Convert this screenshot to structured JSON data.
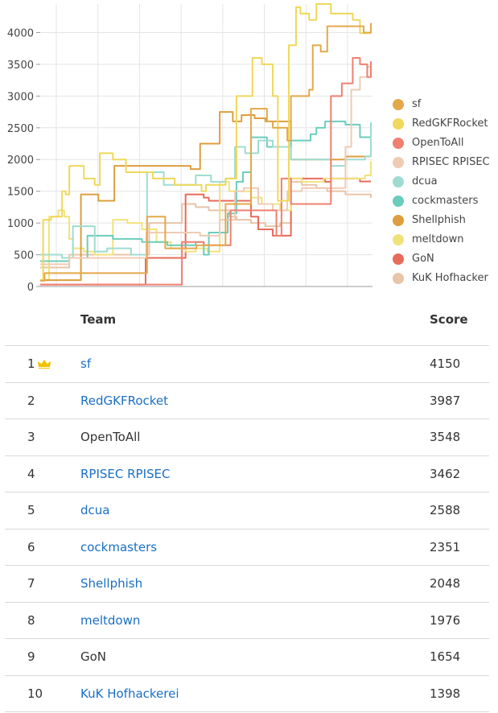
{
  "chart_data": {
    "type": "line",
    "xlabel": "",
    "ylabel": "",
    "ylim": [
      0,
      4450
    ],
    "yticks": [
      0,
      500,
      1000,
      1500,
      2000,
      2500,
      3000,
      3500,
      4000
    ],
    "x_tick_count": 8,
    "grid": true,
    "legend_position": "right",
    "series": [
      {
        "name": "sf",
        "color": "#e4a84a",
        "values": [
          [
            0,
            90
          ],
          [
            3,
            90
          ],
          [
            6,
            210
          ],
          [
            40,
            210
          ],
          [
            80,
            210
          ],
          [
            120,
            210
          ],
          [
            147,
            1100
          ],
          [
            158,
            1100
          ],
          [
            172,
            600
          ],
          [
            200,
            600
          ],
          [
            215,
            650
          ],
          [
            247,
            650
          ],
          [
            255,
            1300
          ],
          [
            280,
            1300
          ],
          [
            290,
            2800
          ],
          [
            312,
            2600
          ],
          [
            320,
            2500
          ],
          [
            340,
            2300
          ],
          [
            345,
            3000
          ],
          [
            370,
            3100
          ],
          [
            375,
            3800
          ],
          [
            386,
            3700
          ],
          [
            395,
            4100
          ],
          [
            430,
            4100
          ],
          [
            445,
            4000
          ],
          [
            455,
            4150
          ]
        ]
      },
      {
        "name": "RedGKFRocket",
        "color": "#efd85a",
        "values": [
          [
            0,
            100
          ],
          [
            4,
            1050
          ],
          [
            15,
            1100
          ],
          [
            30,
            1500
          ],
          [
            35,
            1450
          ],
          [
            40,
            1900
          ],
          [
            60,
            1700
          ],
          [
            75,
            1600
          ],
          [
            82,
            2100
          ],
          [
            100,
            2000
          ],
          [
            118,
            1800
          ],
          [
            130,
            1800
          ],
          [
            155,
            1700
          ],
          [
            185,
            1600
          ],
          [
            214,
            1600
          ],
          [
            222,
            1500
          ],
          [
            228,
            1600
          ],
          [
            255,
            1700
          ],
          [
            270,
            3000
          ],
          [
            292,
            3600
          ],
          [
            305,
            3500
          ],
          [
            320,
            3000
          ],
          [
            327,
            1350
          ],
          [
            335,
            1350
          ],
          [
            342,
            3800
          ],
          [
            352,
            4400
          ],
          [
            358,
            4300
          ],
          [
            370,
            4200
          ],
          [
            380,
            4450
          ],
          [
            400,
            4300
          ],
          [
            430,
            4200
          ],
          [
            440,
            3990
          ],
          [
            455,
            3990
          ]
        ]
      },
      {
        "name": "OpenToAll",
        "color": "#ef8070",
        "values": [
          [
            0,
            30
          ],
          [
            8,
            30
          ],
          [
            30,
            30
          ],
          [
            50,
            30
          ],
          [
            100,
            30
          ],
          [
            140,
            30
          ],
          [
            185,
            30
          ],
          [
            195,
            700
          ],
          [
            210,
            700
          ],
          [
            225,
            650
          ],
          [
            262,
            1200
          ],
          [
            290,
            1200
          ],
          [
            318,
            1200
          ],
          [
            325,
            800
          ],
          [
            332,
            1700
          ],
          [
            345,
            1300
          ],
          [
            360,
            1300
          ],
          [
            392,
            1300
          ],
          [
            400,
            3000
          ],
          [
            415,
            3200
          ],
          [
            430,
            3600
          ],
          [
            440,
            3500
          ],
          [
            450,
            3300
          ],
          [
            455,
            3548
          ]
        ]
      },
      {
        "name": "RPISEC RPISEC",
        "color": "#efcbb4",
        "values": [
          [
            0,
            350
          ],
          [
            8,
            350
          ],
          [
            20,
            350
          ],
          [
            40,
            450
          ],
          [
            70,
            450
          ],
          [
            100,
            450
          ],
          [
            130,
            450
          ],
          [
            146,
            850
          ],
          [
            185,
            850
          ],
          [
            220,
            800
          ],
          [
            247,
            1050
          ],
          [
            268,
            1500
          ],
          [
            280,
            1550
          ],
          [
            300,
            1300
          ],
          [
            320,
            1200
          ],
          [
            333,
            1200
          ],
          [
            340,
            1500
          ],
          [
            360,
            1550
          ],
          [
            400,
            1550
          ],
          [
            420,
            2200
          ],
          [
            428,
            3100
          ],
          [
            440,
            3300
          ],
          [
            450,
            3462
          ]
        ]
      },
      {
        "name": "dcua",
        "color": "#9edcd2",
        "values": [
          [
            0,
            500
          ],
          [
            5,
            500
          ],
          [
            15,
            500
          ],
          [
            30,
            450
          ],
          [
            45,
            950
          ],
          [
            65,
            950
          ],
          [
            75,
            550
          ],
          [
            92,
            600
          ],
          [
            113,
            600
          ],
          [
            125,
            500
          ],
          [
            147,
            1800
          ],
          [
            170,
            1600
          ],
          [
            200,
            1600
          ],
          [
            214,
            1750
          ],
          [
            235,
            1650
          ],
          [
            255,
            1700
          ],
          [
            268,
            2200
          ],
          [
            282,
            2100
          ],
          [
            300,
            2300
          ],
          [
            320,
            2200
          ],
          [
            345,
            2000
          ],
          [
            370,
            2000
          ],
          [
            400,
            1900
          ],
          [
            420,
            2000
          ],
          [
            447,
            2050
          ],
          [
            455,
            2588
          ]
        ]
      },
      {
        "name": "cockmasters",
        "color": "#6bcdbb",
        "values": [
          [
            0,
            400
          ],
          [
            10,
            400
          ],
          [
            25,
            400
          ],
          [
            40,
            450
          ],
          [
            65,
            800
          ],
          [
            100,
            750
          ],
          [
            140,
            700
          ],
          [
            175,
            650
          ],
          [
            214,
            700
          ],
          [
            225,
            500
          ],
          [
            232,
            850
          ],
          [
            250,
            850
          ],
          [
            258,
            1150
          ],
          [
            270,
            1650
          ],
          [
            279,
            1800
          ],
          [
            290,
            2350
          ],
          [
            312,
            2200
          ],
          [
            330,
            2200
          ],
          [
            345,
            2300
          ],
          [
            360,
            2300
          ],
          [
            372,
            2400
          ],
          [
            380,
            2500
          ],
          [
            392,
            2600
          ],
          [
            420,
            2550
          ],
          [
            440,
            2351
          ],
          [
            455,
            2351
          ]
        ]
      },
      {
        "name": "Shellphish",
        "color": "#dd9e3e",
        "values": [
          [
            0,
            100
          ],
          [
            15,
            100
          ],
          [
            30,
            100
          ],
          [
            50,
            100
          ],
          [
            56,
            1450
          ],
          [
            65,
            1450
          ],
          [
            80,
            1350
          ],
          [
            102,
            1900
          ],
          [
            120,
            1900
          ],
          [
            155,
            1900
          ],
          [
            189,
            1900
          ],
          [
            207,
            1850
          ],
          [
            220,
            2250
          ],
          [
            237,
            2250
          ],
          [
            247,
            2750
          ],
          [
            265,
            2600
          ],
          [
            277,
            2700
          ],
          [
            295,
            2650
          ],
          [
            310,
            2600
          ],
          [
            325,
            2600
          ],
          [
            345,
            2000
          ],
          [
            370,
            2000
          ],
          [
            395,
            2000
          ],
          [
            420,
            2048
          ],
          [
            455,
            2048
          ]
        ]
      },
      {
        "name": "meltdown",
        "color": "#f0e27a",
        "values": [
          [
            0,
            100
          ],
          [
            8,
            100
          ],
          [
            12,
            1100
          ],
          [
            25,
            1200
          ],
          [
            33,
            1100
          ],
          [
            40,
            750
          ],
          [
            45,
            600
          ],
          [
            60,
            550
          ],
          [
            75,
            500
          ],
          [
            90,
            500
          ],
          [
            100,
            1050
          ],
          [
            120,
            1000
          ],
          [
            140,
            900
          ],
          [
            160,
            700
          ],
          [
            180,
            600
          ],
          [
            200,
            550
          ],
          [
            214,
            600
          ],
          [
            230,
            550
          ],
          [
            247,
            1650
          ],
          [
            260,
            1500
          ],
          [
            277,
            1500
          ],
          [
            290,
            1400
          ],
          [
            305,
            1300
          ],
          [
            330,
            1200
          ],
          [
            345,
            1700
          ],
          [
            360,
            1650
          ],
          [
            390,
            1700
          ],
          [
            420,
            1700
          ],
          [
            447,
            1750
          ],
          [
            455,
            1976
          ]
        ]
      },
      {
        "name": "GoN",
        "color": "#e86a5a",
        "values": [
          [
            0,
            30
          ],
          [
            10,
            30
          ],
          [
            20,
            30
          ],
          [
            60,
            30
          ],
          [
            100,
            30
          ],
          [
            135,
            30
          ],
          [
            145,
            450
          ],
          [
            160,
            450
          ],
          [
            189,
            450
          ],
          [
            200,
            1450
          ],
          [
            225,
            1400
          ],
          [
            232,
            1350
          ],
          [
            260,
            1350
          ],
          [
            290,
            1100
          ],
          [
            300,
            900
          ],
          [
            320,
            800
          ],
          [
            335,
            800
          ],
          [
            345,
            1700
          ],
          [
            380,
            1700
          ],
          [
            392,
            1650
          ],
          [
            400,
            1700
          ],
          [
            430,
            1700
          ],
          [
            440,
            1654
          ],
          [
            455,
            1654
          ]
        ]
      },
      {
        "name": "KuK Hofhacker",
        "color": "#e8c4a8",
        "values": [
          [
            0,
            300
          ],
          [
            5,
            300
          ],
          [
            15,
            300
          ],
          [
            40,
            500
          ],
          [
            60,
            500
          ],
          [
            100,
            500
          ],
          [
            140,
            500
          ],
          [
            150,
            1000
          ],
          [
            170,
            1000
          ],
          [
            195,
            1300
          ],
          [
            214,
            1250
          ],
          [
            232,
            1200
          ],
          [
            260,
            1100
          ],
          [
            270,
            1050
          ],
          [
            277,
            1050
          ],
          [
            290,
            1000
          ],
          [
            310,
            950
          ],
          [
            330,
            1000
          ],
          [
            345,
            1650
          ],
          [
            360,
            1600
          ],
          [
            380,
            1550
          ],
          [
            395,
            1500
          ],
          [
            420,
            1450
          ],
          [
            440,
            1450
          ],
          [
            455,
            1398
          ]
        ]
      }
    ]
  },
  "scoreboard": {
    "headers": {
      "rank": "",
      "team": "Team",
      "score": "Score"
    },
    "rows": [
      {
        "rank": "1",
        "team": "sf",
        "score": "4150",
        "link": true,
        "crown": true
      },
      {
        "rank": "2",
        "team": "RedGKFRocket",
        "score": "3987",
        "link": true
      },
      {
        "rank": "3",
        "team": "OpenToAll",
        "score": "3548",
        "link": false
      },
      {
        "rank": "4",
        "team": "RPISEC RPISEC",
        "score": "3462",
        "link": true
      },
      {
        "rank": "5",
        "team": "dcua",
        "score": "2588",
        "link": true
      },
      {
        "rank": "6",
        "team": "cockmasters",
        "score": "2351",
        "link": true
      },
      {
        "rank": "7",
        "team": "Shellphish",
        "score": "2048",
        "link": true
      },
      {
        "rank": "8",
        "team": "meltdown",
        "score": "1976",
        "link": true
      },
      {
        "rank": "9",
        "team": "GoN",
        "score": "1654",
        "link": false
      },
      {
        "rank": "10",
        "team": "KuK Hofhackerei",
        "score": "1398",
        "link": true
      }
    ]
  },
  "colors": {
    "link": "#1a6fc4",
    "crown": "#f2c200",
    "grid": "#e4e4e4"
  },
  "icons": {
    "leader": "crown-icon"
  }
}
